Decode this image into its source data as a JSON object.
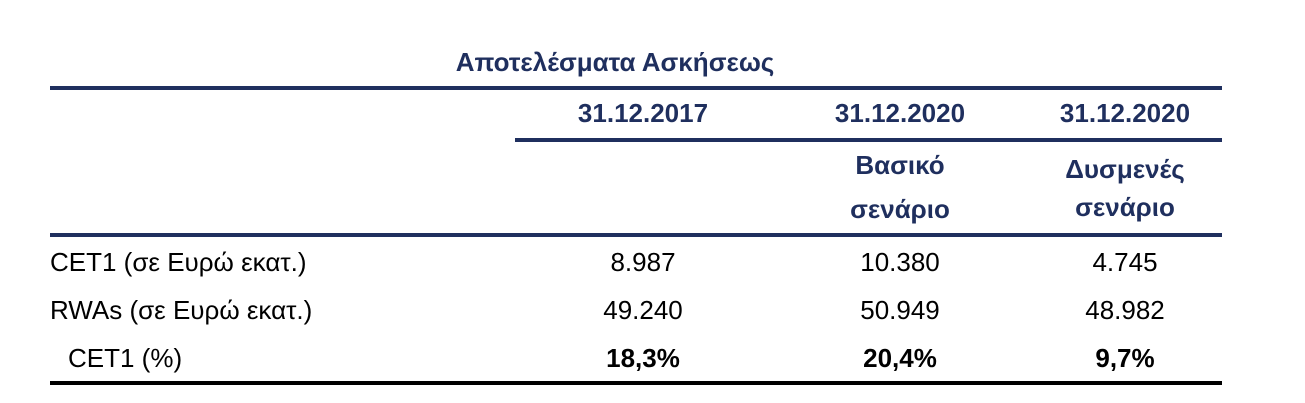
{
  "title": "Αποτελέσματα Ασκήσεως",
  "table": {
    "header": [
      "31.12.2017",
      "31.12.2020",
      "31.12.2020"
    ],
    "subheader": [
      null,
      [
        "Βασικό",
        "σενάριο"
      ],
      [
        "Δυσμενές",
        "σενάριο"
      ]
    ],
    "rows": [
      [
        "CET1 (σε Ευρώ εκατ.)",
        "8.987",
        "10.380",
        "4.745"
      ],
      [
        "RWAs (σε Ευρώ εκατ.)",
        "49.240",
        "50.949",
        "48.982"
      ],
      [
        "CET1 (%)",
        "18,3%",
        "20,4%",
        "9,7%"
      ]
    ]
  }
}
